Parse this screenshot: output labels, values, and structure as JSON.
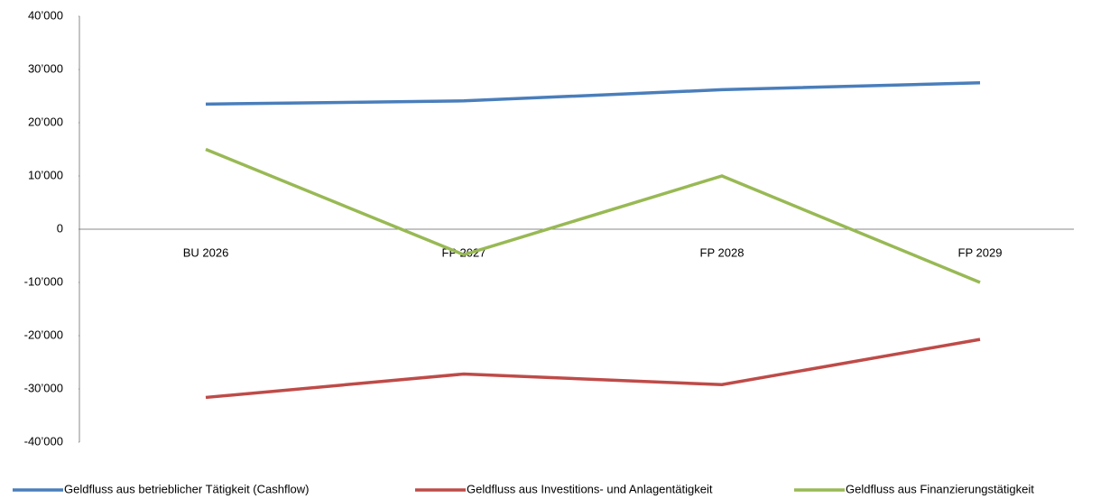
{
  "chart_data": {
    "type": "line",
    "categories": [
      "BU 2026",
      "FP 2027",
      "FP 2028",
      "FP 2029"
    ],
    "series": [
      {
        "name": "Geldfluss aus betrieblicher Tätigkeit (Cashflow)",
        "color": "#4a7ebb",
        "values": [
          23500,
          24100,
          26200,
          27500
        ]
      },
      {
        "name": "Geldfluss aus Investitions- und Anlagentätigkeit",
        "color": "#be4b48",
        "values": [
          -31600,
          -27200,
          -29200,
          -20700
        ]
      },
      {
        "name": "Geldfluss aus Finanzierungstätigkeit",
        "color": "#98b954",
        "values": [
          15000,
          -4800,
          10000,
          -10000
        ]
      }
    ],
    "ylim": [
      -40000,
      40000
    ],
    "yticks": [
      {
        "value": -40000,
        "label": "-40’000"
      },
      {
        "value": -30000,
        "label": "-30’000"
      },
      {
        "value": -20000,
        "label": "-20’000"
      },
      {
        "value": -10000,
        "label": "-10’000"
      },
      0,
      {
        "value": 10000,
        "label": "10’000"
      },
      {
        "value": 20000,
        "label": "20’000"
      },
      {
        "value": 30000,
        "label": "30’000"
      },
      {
        "value": 40000,
        "label": "40’000"
      }
    ],
    "legend": "bottom"
  }
}
